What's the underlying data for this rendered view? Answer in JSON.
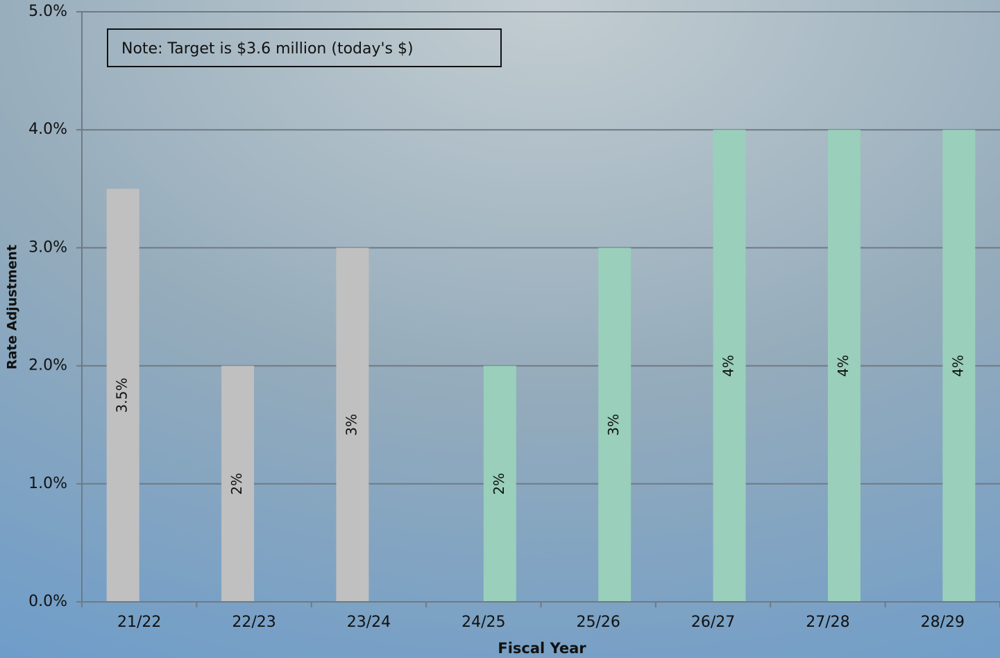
{
  "chart_data": {
    "type": "bar",
    "annotation": "Note: Target is $3.6 million (today's $)",
    "x_label": "Fiscal Year",
    "y_label": "Rate Adjustment",
    "categories": [
      "21/22",
      "22/23",
      "23/24",
      "24/25",
      "25/26",
      "26/27",
      "27/28",
      "28/29"
    ],
    "series": [
      {
        "color": "#c0c0c0",
        "values": [
          3.5,
          2,
          3,
          null,
          null,
          null,
          null,
          null
        ],
        "value_labels": [
          "3.5%",
          "2%",
          "3%",
          null,
          null,
          null,
          null,
          null
        ]
      },
      {
        "color": "#99cfbb",
        "values": [
          null,
          null,
          null,
          2,
          3,
          4,
          4,
          4
        ],
        "value_labels": [
          null,
          null,
          null,
          "2%",
          "3%",
          "4%",
          "4%",
          "4%"
        ]
      }
    ],
    "ylim": [
      0,
      5
    ],
    "yticks": [
      {
        "value": 0,
        "label": "0.0%"
      },
      {
        "value": 1,
        "label": "1.0%"
      },
      {
        "value": 2,
        "label": "2.0%"
      },
      {
        "value": 3,
        "label": "3.0%"
      },
      {
        "value": 4,
        "label": "4.0%"
      },
      {
        "value": 5,
        "label": "5.0%"
      }
    ],
    "grid": true
  }
}
